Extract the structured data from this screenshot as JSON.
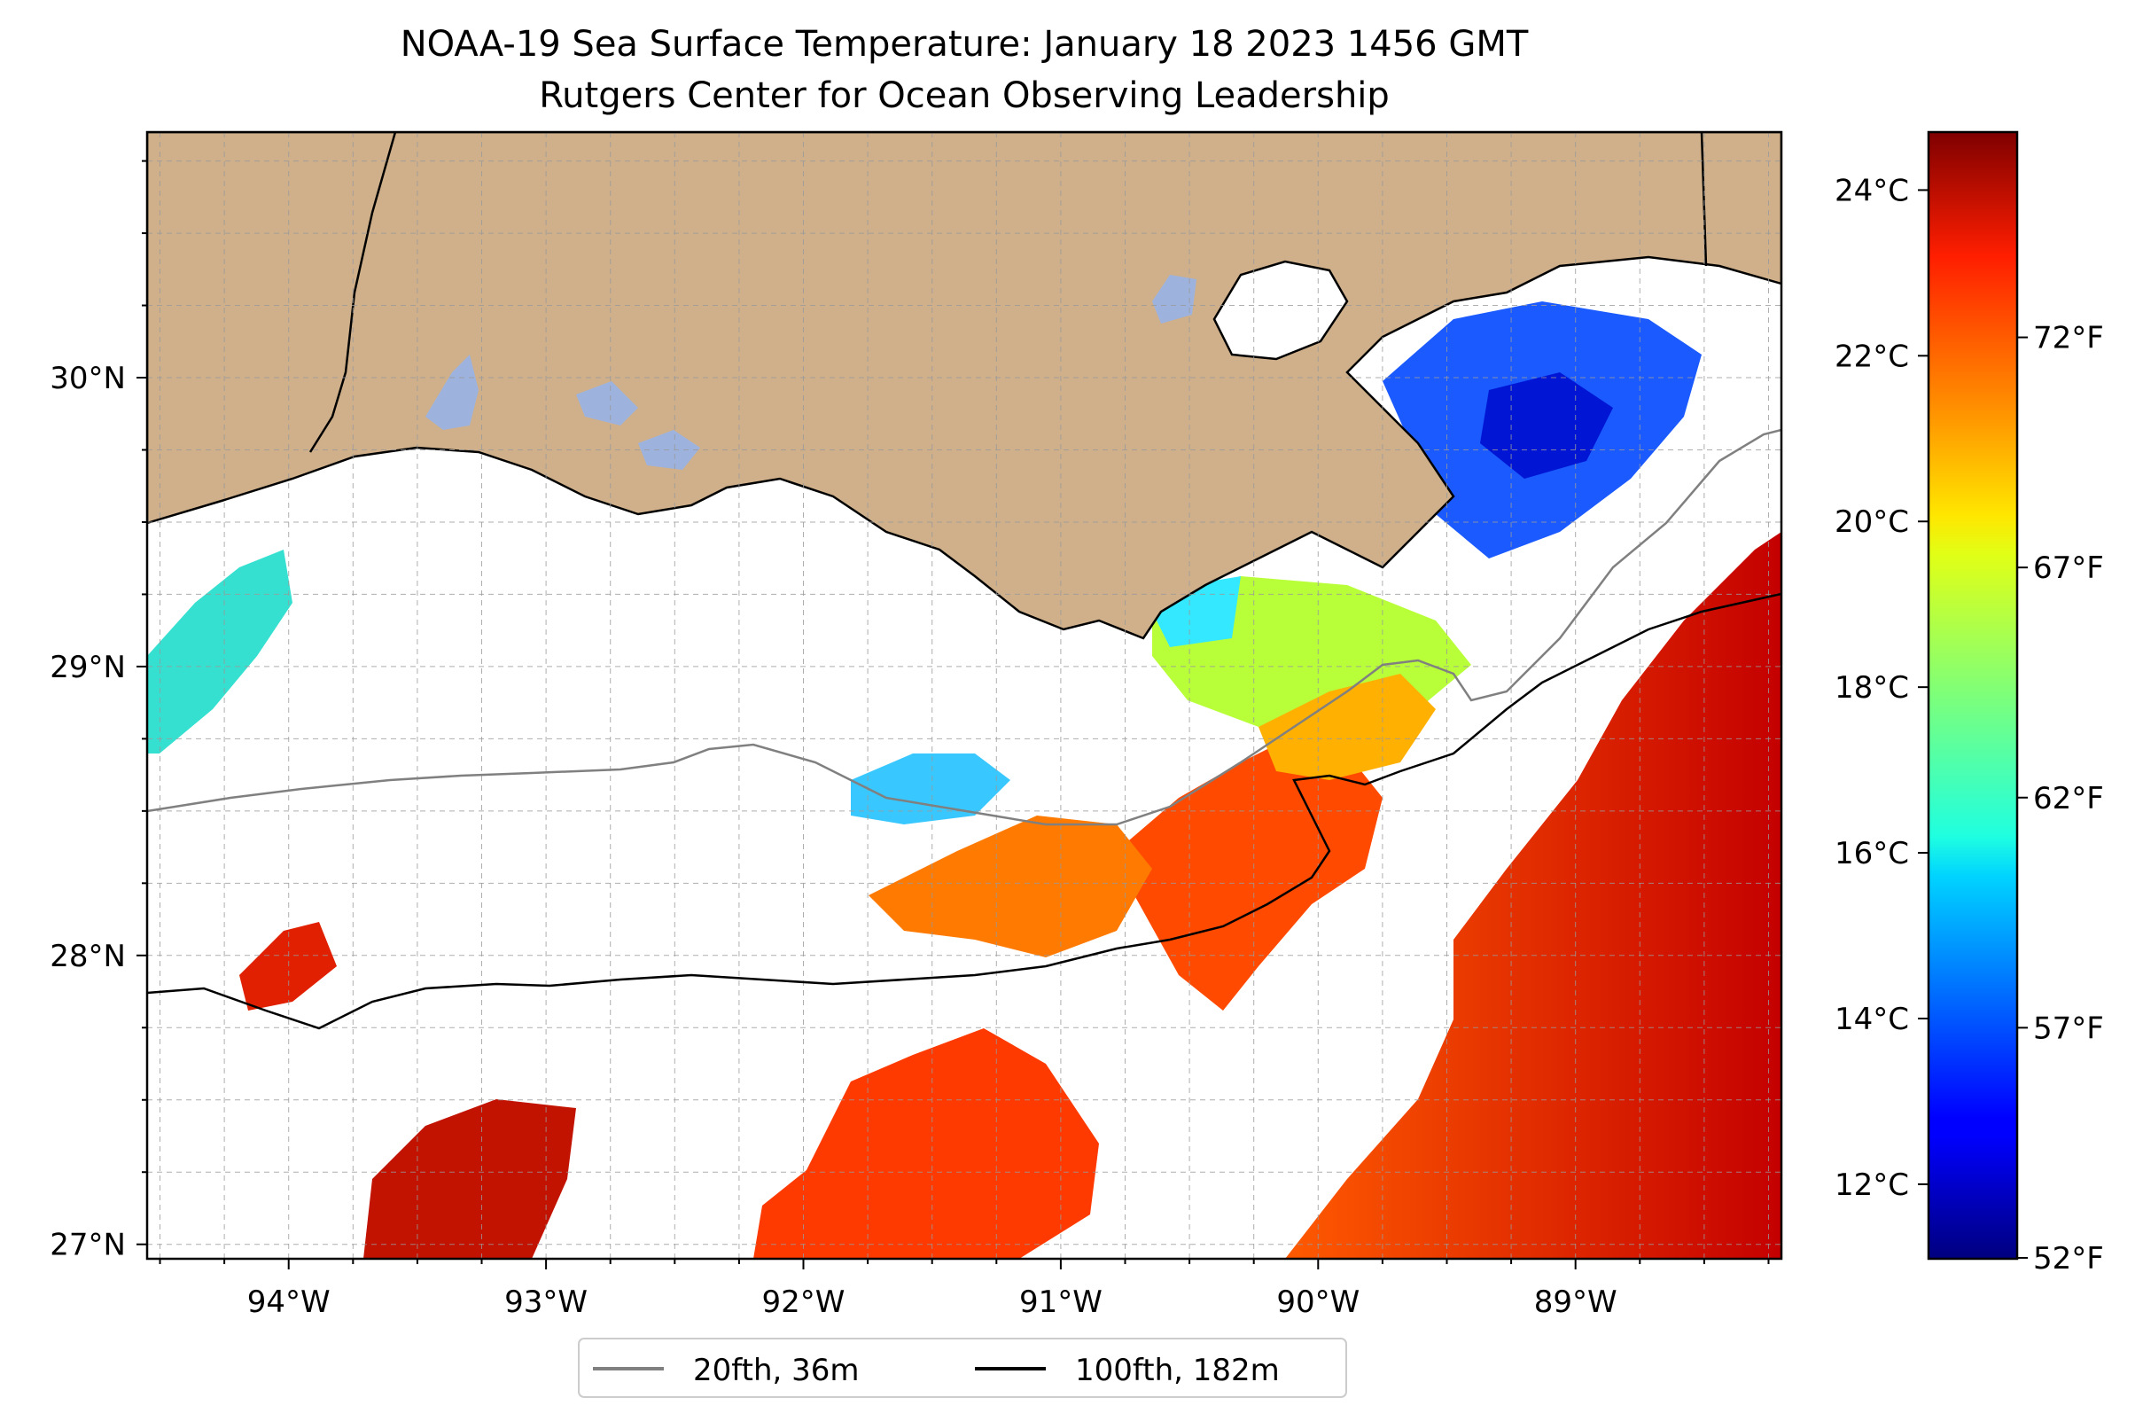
{
  "title": {
    "line1": "NOAA-19 Sea Surface Temperature: January 18 2023 1456 GMT",
    "line2": "Rutgers Center for Ocean Observing Leadership"
  },
  "map": {
    "lon_range": [
      -94.55,
      -88.2
    ],
    "lat_range": [
      26.95,
      30.85
    ],
    "lon_ticks": [
      {
        "value": -94,
        "label": "94°W"
      },
      {
        "value": -93,
        "label": "93°W"
      },
      {
        "value": -92,
        "label": "92°W"
      },
      {
        "value": -91,
        "label": "91°W"
      },
      {
        "value": -90,
        "label": "90°W"
      },
      {
        "value": -89,
        "label": "89°W"
      }
    ],
    "lat_ticks": [
      {
        "value": 27,
        "label": "27°N"
      },
      {
        "value": 28,
        "label": "28°N"
      },
      {
        "value": 29,
        "label": "29°N"
      },
      {
        "value": 30,
        "label": "30°N"
      }
    ],
    "gridlines": true,
    "land_color": "#cfb08b",
    "lake_color": "#9db3de"
  },
  "legend": {
    "placement": "bottom-center",
    "items": [
      {
        "label": "20fth, 36m",
        "color": "#808080"
      },
      {
        "label": "100fth, 182m",
        "color": "#000000"
      }
    ]
  },
  "colorbar": {
    "colormap": "jet",
    "celsius_range": [
      11.1,
      24.7
    ],
    "celsius_ticks": [
      {
        "value": 12,
        "label": "12°C"
      },
      {
        "value": 14,
        "label": "14°C"
      },
      {
        "value": 16,
        "label": "16°C"
      },
      {
        "value": 18,
        "label": "18°C"
      },
      {
        "value": 20,
        "label": "20°C"
      },
      {
        "value": 22,
        "label": "22°C"
      },
      {
        "value": 24,
        "label": "24°C"
      }
    ],
    "fahrenheit_ticks": [
      {
        "value": 52,
        "label": "52°F"
      },
      {
        "value": 57,
        "label": "57°F"
      },
      {
        "value": 62,
        "label": "62°F"
      },
      {
        "value": 67,
        "label": "67°F"
      },
      {
        "value": 72,
        "label": "72°F"
      }
    ]
  }
}
